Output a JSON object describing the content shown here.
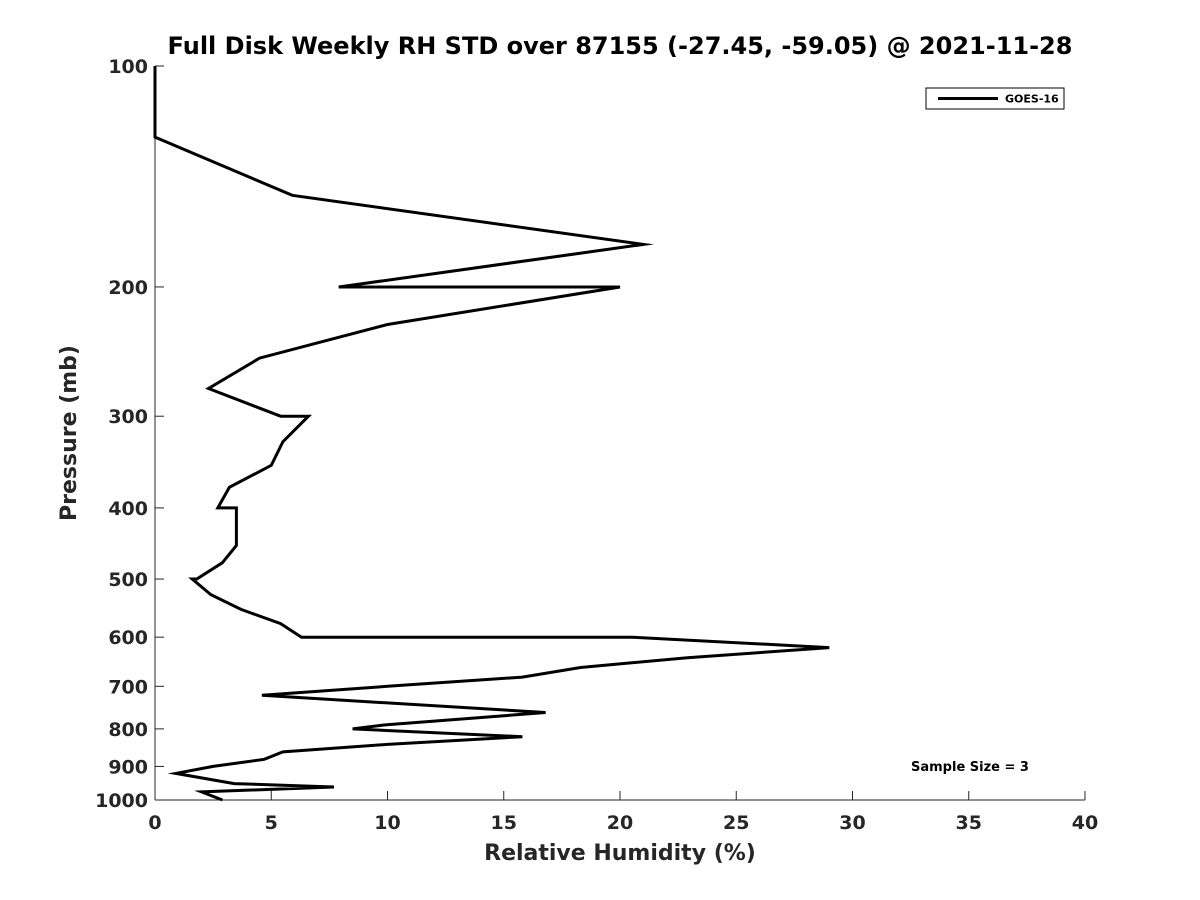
{
  "chart_data": {
    "type": "line",
    "title": "Full Disk Weekly RH STD over 87155 (-27.45, -59.05) @ 2021-11-28",
    "xlabel": "Relative Humidity (%)",
    "ylabel": "Pressure (mb)",
    "xlim": [
      0,
      40
    ],
    "ylim": [
      100,
      1000
    ],
    "y_scale": "log",
    "y_reversed": true,
    "grid": false,
    "x_ticks": [
      0,
      5,
      10,
      15,
      20,
      25,
      30,
      35,
      40
    ],
    "x_tick_labels": [
      "0",
      "5",
      "10",
      "15",
      "20",
      "25",
      "30",
      "35",
      "40"
    ],
    "y_ticks": [
      100,
      200,
      300,
      400,
      500,
      600,
      700,
      800,
      900,
      1000
    ],
    "y_tick_labels": [
      "100",
      "200",
      "300",
      "400",
      "500",
      "600",
      "700",
      "800",
      "900",
      "1000"
    ],
    "legend_position": "top-right",
    "annotation": "Sample Size = 3",
    "series": [
      {
        "name": "GOES-16",
        "color": "#000000",
        "points": [
          [
            0,
            100
          ],
          [
            0,
            125
          ],
          [
            5.9,
            150
          ],
          [
            21.0,
            175
          ],
          [
            7.9,
            200
          ],
          [
            20.0,
            200
          ],
          [
            10.0,
            225
          ],
          [
            4.5,
            250
          ],
          [
            2.3,
            275
          ],
          [
            5.4,
            300
          ],
          [
            6.6,
            300
          ],
          [
            5.5,
            325
          ],
          [
            5.0,
            350
          ],
          [
            3.2,
            375
          ],
          [
            2.7,
            400
          ],
          [
            3.5,
            400
          ],
          [
            3.5,
            450
          ],
          [
            2.9,
            475
          ],
          [
            1.8,
            500
          ],
          [
            1.6,
            500
          ],
          [
            2.4,
            525
          ],
          [
            3.7,
            550
          ],
          [
            5.4,
            575
          ],
          [
            6.3,
            600
          ],
          [
            20.5,
            600
          ],
          [
            29.0,
            620
          ],
          [
            22.9,
            640
          ],
          [
            18.3,
            660
          ],
          [
            15.8,
            680
          ],
          [
            10.0,
            700
          ],
          [
            4.6,
            720
          ],
          [
            16.8,
            760
          ],
          [
            9.9,
            790
          ],
          [
            8.5,
            800
          ],
          [
            15.8,
            820
          ],
          [
            10.0,
            840
          ],
          [
            5.5,
            860
          ],
          [
            4.7,
            880
          ],
          [
            2.5,
            900
          ],
          [
            0.9,
            920
          ],
          [
            3.4,
            950
          ],
          [
            7.7,
            960
          ],
          [
            2.0,
            975
          ],
          [
            2.9,
            1000
          ]
        ]
      }
    ]
  }
}
